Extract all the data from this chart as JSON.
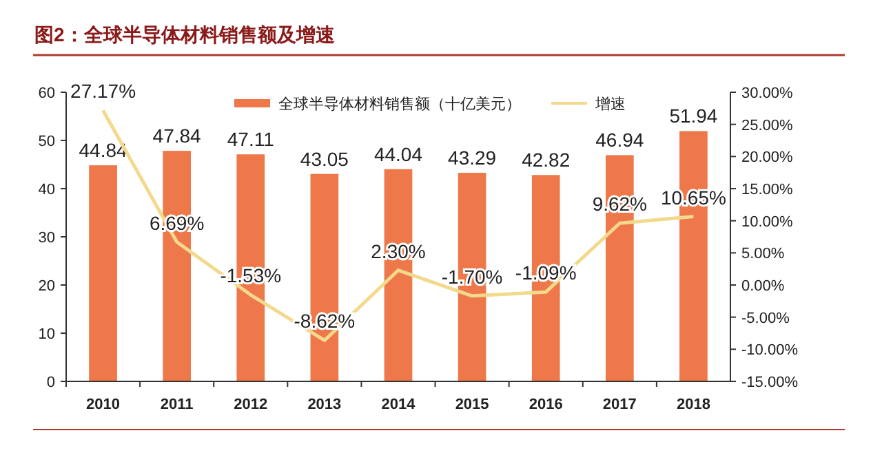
{
  "chart_data": {
    "type": "bar",
    "title": "图2：全球半导体材料销售额及增速",
    "categories": [
      "2010",
      "2011",
      "2012",
      "2013",
      "2014",
      "2015",
      "2016",
      "2017",
      "2018"
    ],
    "series": [
      {
        "name": "全球半导体材料销售额（十亿美元）",
        "color": "#ee7849",
        "values": [
          44.84,
          47.84,
          47.11,
          43.05,
          44.04,
          43.29,
          42.82,
          46.94,
          51.94
        ],
        "value_labels": [
          "44.84",
          "47.84",
          "47.11",
          "43.05",
          "44.04",
          "43.29",
          "42.82",
          "46.94",
          "51.94"
        ]
      },
      {
        "name": "增速",
        "type": "line",
        "axis": "y2",
        "color": "#f2d98c",
        "values": [
          27.17,
          6.69,
          -1.53,
          -8.62,
          2.3,
          -1.7,
          -1.09,
          9.62,
          10.65
        ],
        "value_labels": [
          "27.17%",
          "6.69%",
          "-1.53%",
          "-8.62%",
          "2.30%",
          "-1.70%",
          "-1.09%",
          "9.62%",
          "10.65%"
        ]
      }
    ],
    "ylim": [
      0,
      60
    ],
    "yticks": [
      0,
      10,
      20,
      30,
      40,
      50,
      60
    ],
    "y2lim": [
      -15,
      30
    ],
    "y2ticks": [
      {
        "value": -15,
        "label": "-15.00%"
      },
      {
        "value": -10,
        "label": "-10.00%"
      },
      {
        "value": -5,
        "label": "-5.00%"
      },
      {
        "value": 0,
        "label": "0.00%"
      },
      {
        "value": 5,
        "label": "5.00%"
      },
      {
        "value": 10,
        "label": "10.00%"
      },
      {
        "value": 15,
        "label": "15.00%"
      },
      {
        "value": 20,
        "label": "20.00%"
      },
      {
        "value": 25,
        "label": "25.00%"
      },
      {
        "value": 30,
        "label": "30.00%"
      }
    ],
    "legend": "top",
    "grid": false
  }
}
